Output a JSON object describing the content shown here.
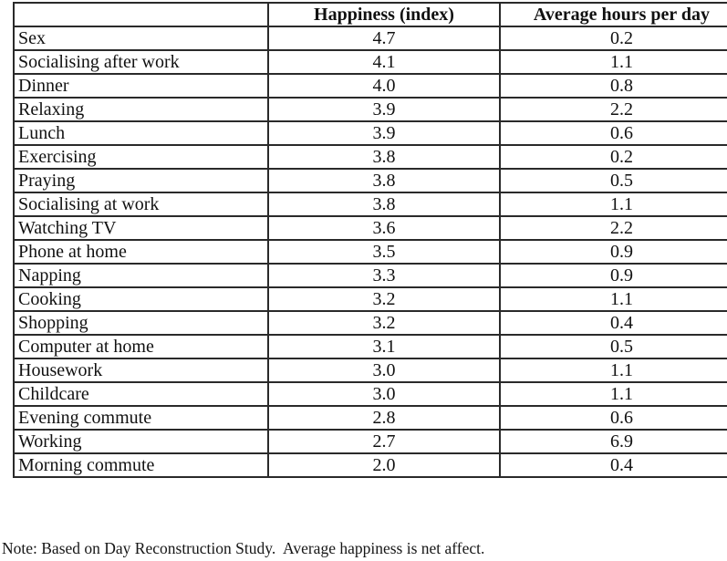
{
  "table": {
    "columns": [
      "",
      "Happiness (index)",
      "Average hours per day"
    ],
    "rows": [
      {
        "activity": "Sex",
        "happiness": "4.7",
        "hours": "0.2"
      },
      {
        "activity": "Socialising after work",
        "happiness": "4.1",
        "hours": "1.1"
      },
      {
        "activity": "Dinner",
        "happiness": "4.0",
        "hours": "0.8"
      },
      {
        "activity": "Relaxing",
        "happiness": "3.9",
        "hours": "2.2"
      },
      {
        "activity": "Lunch",
        "happiness": "3.9",
        "hours": "0.6"
      },
      {
        "activity": "Exercising",
        "happiness": "3.8",
        "hours": "0.2"
      },
      {
        "activity": "Praying",
        "happiness": "3.8",
        "hours": "0.5"
      },
      {
        "activity": "Socialising at work",
        "happiness": "3.8",
        "hours": "1.1"
      },
      {
        "activity": "Watching TV",
        "happiness": "3.6",
        "hours": "2.2"
      },
      {
        "activity": "Phone at home",
        "happiness": "3.5",
        "hours": "0.9"
      },
      {
        "activity": "Napping",
        "happiness": "3.3",
        "hours": "0.9"
      },
      {
        "activity": "Cooking",
        "happiness": "3.2",
        "hours": "1.1"
      },
      {
        "activity": "Shopping",
        "happiness": "3.2",
        "hours": "0.4"
      },
      {
        "activity": "Computer at home",
        "happiness": "3.1",
        "hours": "0.5"
      },
      {
        "activity": "Housework",
        "happiness": "3.0",
        "hours": "1.1"
      },
      {
        "activity": "Childcare",
        "happiness": "3.0",
        "hours": "1.1"
      },
      {
        "activity": "Evening commute",
        "happiness": "2.8",
        "hours": "0.6"
      },
      {
        "activity": "Working",
        "happiness": "2.7",
        "hours": "6.9"
      },
      {
        "activity": "Morning commute",
        "happiness": "2.0",
        "hours": "0.4"
      }
    ]
  },
  "note": "Note: Based on Day Reconstruction Study.  Average happiness is net affect."
}
